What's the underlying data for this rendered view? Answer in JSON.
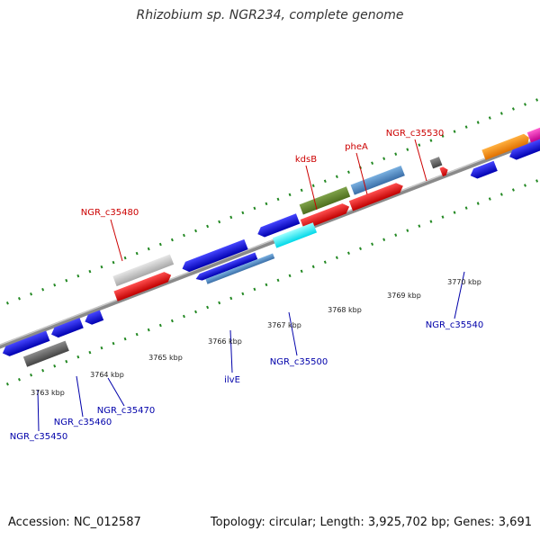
{
  "title": "Rhizobium sp. NGR234, complete genome",
  "footer": {
    "accession": "Accession: NC_012587",
    "summary": "Topology: circular; Length: 3,925,702 bp; Genes: 3,691"
  },
  "colors": {
    "forward_label": "#cc0000",
    "reverse_label": "#0000aa",
    "tick": "#228822",
    "backbone": "#8a8a8a"
  },
  "scale_labels": [
    "3763 kbp",
    "3764 kbp",
    "3765 kbp",
    "3766 kbp",
    "3767 kbp",
    "3768 kbp",
    "3769 kbp",
    "3770 kbp"
  ],
  "forward_gene_labels": [
    "NGR_c35480",
    "kdsB",
    "pheA",
    "NGR_c35530"
  ],
  "reverse_gene_labels": [
    "NGR_c35450",
    "NGR_c35460",
    "NGR_c35470",
    "ilvE",
    "NGR_c35500",
    "NGR_c35540"
  ]
}
